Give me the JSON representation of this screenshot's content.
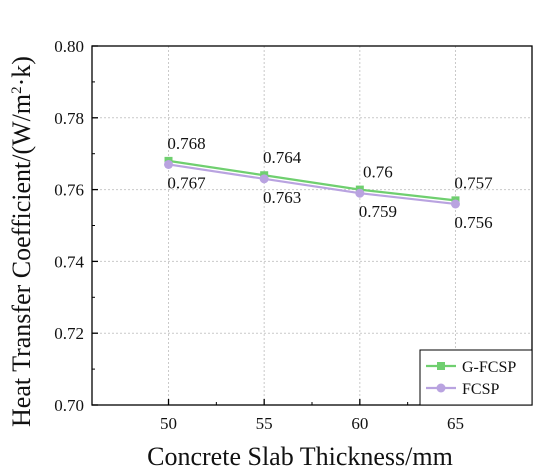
{
  "chart_data": {
    "type": "line",
    "title": "",
    "xlabel": "Concrete Slab Thickness/mm",
    "ylabel_main": "Heat Transfer Coefficient/(W/m",
    "ylabel_sup": "2",
    "ylabel_tail": "·k)",
    "x": [
      50,
      55,
      60,
      65
    ],
    "xlim": [
      46,
      69
    ],
    "xticks": [
      "50",
      "55",
      "60",
      "65"
    ],
    "ylim": [
      0.7,
      0.8
    ],
    "yticks": [
      "0.70",
      "0.72",
      "0.74",
      "0.76",
      "0.78",
      "0.80"
    ],
    "grid": true,
    "legend_position": "bottom-right",
    "series": [
      {
        "name": "G-FCSP",
        "values": [
          0.768,
          0.764,
          0.76,
          0.757
        ],
        "labels": [
          "0.768",
          "0.764",
          "0.76",
          "0.757"
        ],
        "color": "#6fcf6f",
        "marker": "square"
      },
      {
        "name": "FCSP",
        "values": [
          0.767,
          0.763,
          0.759,
          0.756
        ],
        "labels": [
          "0.767",
          "0.763",
          "0.759",
          "0.756"
        ],
        "color": "#b9a3e0",
        "marker": "circle"
      }
    ]
  }
}
